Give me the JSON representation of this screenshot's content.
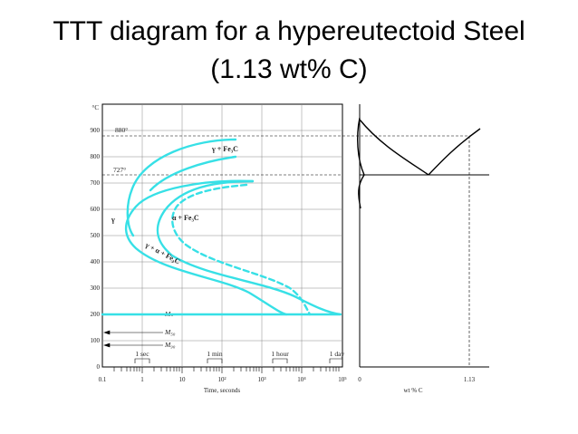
{
  "slide": {
    "title_line1": "TTT diagram for a hypereutectoid Steel",
    "title_line2": "(1.13 wt% C)"
  },
  "ttt": {
    "y_unit": "°C",
    "y_ticks": [
      "0",
      "100",
      "200",
      "300",
      "400",
      "500",
      "600",
      "700",
      "800",
      "900"
    ],
    "x_ticks": [
      "0.1",
      "1",
      "10",
      "10²",
      "10³",
      "10⁴",
      "10⁵"
    ],
    "x_label": "Time, seconds",
    "time_marks": [
      "1 sec",
      "1 min",
      "1 hour",
      "1 day"
    ],
    "temps": {
      "a1": "880°",
      "a2": "727°"
    },
    "regions": {
      "austenite": "γ",
      "gamma_cementite": "γ + Fe₃C",
      "alpha_cementite": "α + Fe₃C",
      "gamma_alpha_cementite": "γ + α + Fe₃C"
    },
    "martensite": {
      "ms": "Mₛ",
      "m50": "M₅₀",
      "m90": "M₉₀"
    }
  },
  "phase": {
    "x_ticks": [
      "0",
      "1.13"
    ],
    "x_label": "wt % C"
  },
  "colors": {
    "curve": "#37e0e6",
    "axis": "#000000",
    "grid": "#777777"
  }
}
